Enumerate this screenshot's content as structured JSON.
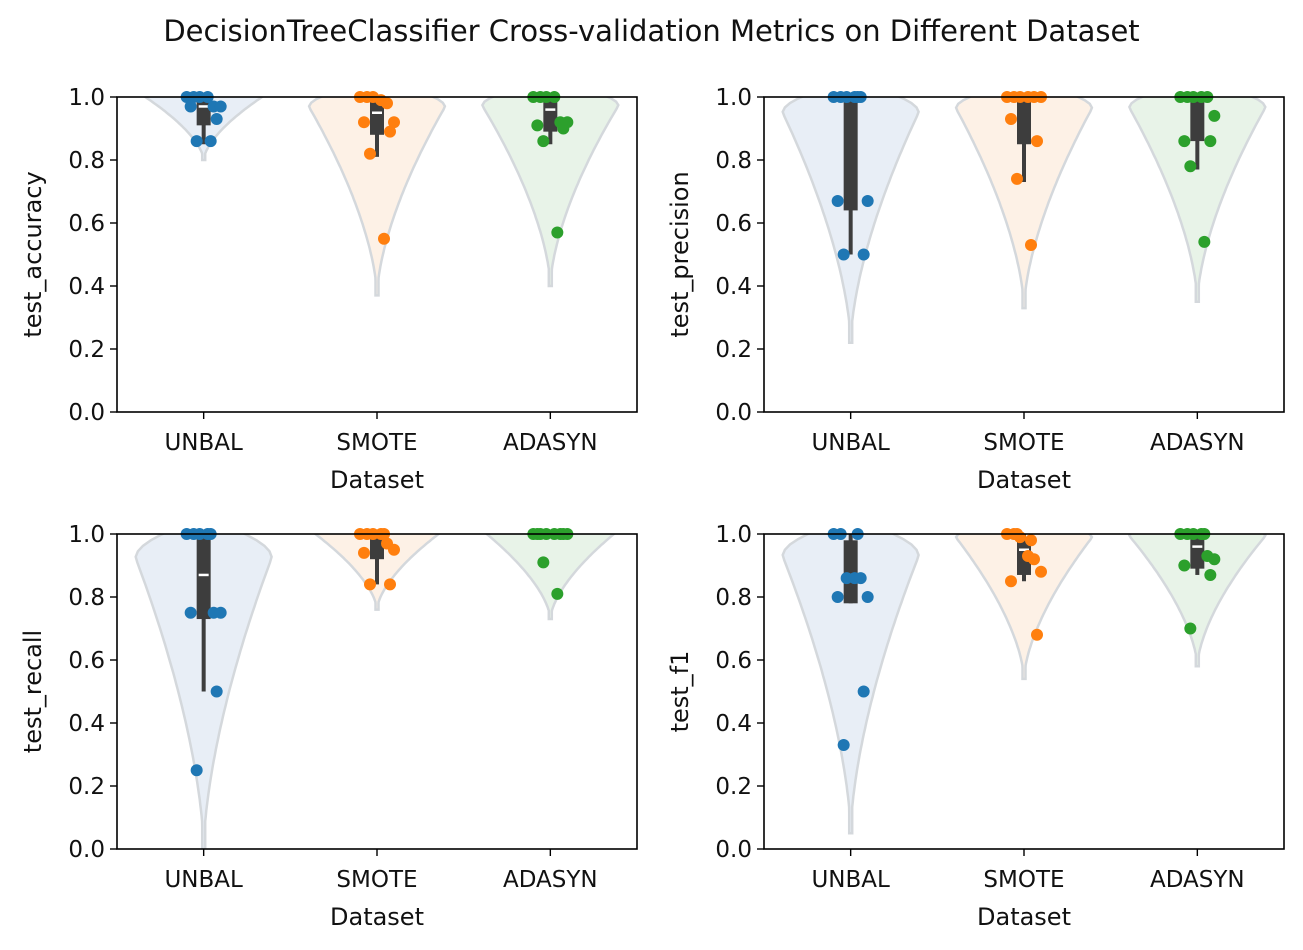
{
  "title": "DecisionTreeClassifier Cross-validation Metrics on Different Dataset",
  "colors": {
    "UNBAL": "#1f77b4",
    "SMOTE": "#ff7f0e",
    "ADASYN": "#2ca02c",
    "violin_UNBAL": "#e8eef6",
    "violin_SMOTE": "#fdf1e6",
    "violin_ADASYN": "#e8f3e8",
    "violin_edge": "#d4d8dc",
    "box": "#3d3d3d",
    "median": "#ffffff"
  },
  "chart_data": [
    {
      "type": "violin",
      "xlabel": "Dataset",
      "ylabel": "test_accuracy",
      "categories": [
        "UNBAL",
        "SMOTE",
        "ADASYN"
      ],
      "ylim": [
        0.0,
        1.0
      ],
      "yticks": [
        "0.0",
        "0.2",
        "0.4",
        "0.6",
        "0.8",
        "1.0"
      ],
      "series": [
        {
          "name": "UNBAL",
          "points": [
            1.0,
            1.0,
            1.0,
            1.0,
            0.97,
            0.97,
            0.97,
            0.93,
            0.86,
            0.86
          ],
          "q1": 0.91,
          "median": 0.97,
          "q3": 1.0,
          "whisker_low": 0.85,
          "whisker_high": 1.0,
          "violin_low": 0.8
        },
        {
          "name": "SMOTE",
          "points": [
            1.0,
            1.0,
            1.0,
            0.99,
            0.98,
            0.92,
            0.92,
            0.89,
            0.82,
            0.55
          ],
          "q1": 0.88,
          "median": 0.95,
          "q3": 1.0,
          "whisker_low": 0.81,
          "whisker_high": 1.0,
          "violin_low": 0.37
        },
        {
          "name": "ADASYN",
          "points": [
            1.0,
            1.0,
            1.0,
            1.0,
            0.92,
            0.92,
            0.91,
            0.9,
            0.86,
            0.57
          ],
          "q1": 0.89,
          "median": 0.96,
          "q3": 1.0,
          "whisker_low": 0.85,
          "whisker_high": 1.0,
          "violin_low": 0.4
        }
      ]
    },
    {
      "type": "violin",
      "xlabel": "Dataset",
      "ylabel": "test_precision",
      "categories": [
        "UNBAL",
        "SMOTE",
        "ADASYN"
      ],
      "ylim": [
        0.0,
        1.0
      ],
      "yticks": [
        "0.0",
        "0.2",
        "0.4",
        "0.6",
        "0.8",
        "1.0"
      ],
      "series": [
        {
          "name": "UNBAL",
          "points": [
            1.0,
            1.0,
            1.0,
            1.0,
            1.0,
            0.67,
            0.67,
            0.5,
            0.5,
            1.0
          ],
          "q1": 0.64,
          "median": 1.0,
          "q3": 1.0,
          "whisker_low": 0.5,
          "whisker_high": 1.0,
          "violin_low": 0.22
        },
        {
          "name": "SMOTE",
          "points": [
            1.0,
            1.0,
            1.0,
            1.0,
            1.0,
            1.0,
            0.93,
            0.86,
            0.74,
            0.53
          ],
          "q1": 0.85,
          "median": 1.0,
          "q3": 1.0,
          "whisker_low": 0.73,
          "whisker_high": 1.0,
          "violin_low": 0.33
        },
        {
          "name": "ADASYN",
          "points": [
            1.0,
            1.0,
            1.0,
            1.0,
            1.0,
            0.94,
            0.86,
            0.86,
            0.78,
            0.54
          ],
          "q1": 0.86,
          "median": 1.0,
          "q3": 1.0,
          "whisker_low": 0.77,
          "whisker_high": 1.0,
          "violin_low": 0.35
        }
      ]
    },
    {
      "type": "violin",
      "xlabel": "Dataset",
      "ylabel": "test_recall",
      "categories": [
        "UNBAL",
        "SMOTE",
        "ADASYN"
      ],
      "ylim": [
        0.0,
        1.0
      ],
      "yticks": [
        "0.0",
        "0.2",
        "0.4",
        "0.6",
        "0.8",
        "1.0"
      ],
      "series": [
        {
          "name": "UNBAL",
          "points": [
            1.0,
            1.0,
            1.0,
            1.0,
            0.75,
            0.75,
            0.75,
            0.5,
            0.25,
            1.0
          ],
          "q1": 0.73,
          "median": 0.87,
          "q3": 1.0,
          "whisker_low": 0.5,
          "whisker_high": 1.0,
          "violin_low": 0.0
        },
        {
          "name": "SMOTE",
          "points": [
            1.0,
            1.0,
            1.0,
            1.0,
            0.97,
            0.95,
            0.94,
            0.84,
            0.84,
            1.0
          ],
          "q1": 0.92,
          "median": 1.0,
          "q3": 1.0,
          "whisker_low": 0.84,
          "whisker_high": 1.0,
          "violin_low": 0.76
        },
        {
          "name": "ADASYN",
          "points": [
            1.0,
            1.0,
            1.0,
            1.0,
            1.0,
            1.0,
            1.0,
            1.0,
            0.91,
            0.81
          ],
          "q1": 1.0,
          "median": 1.0,
          "q3": 1.0,
          "whisker_low": 1.0,
          "whisker_high": 1.0,
          "violin_low": 0.73
        }
      ]
    },
    {
      "type": "violin",
      "xlabel": "Dataset",
      "ylabel": "test_f1",
      "categories": [
        "UNBAL",
        "SMOTE",
        "ADASYN"
      ],
      "ylim": [
        0.0,
        1.0
      ],
      "yticks": [
        "0.0",
        "0.2",
        "0.4",
        "0.6",
        "0.8",
        "1.0"
      ],
      "series": [
        {
          "name": "UNBAL",
          "points": [
            1.0,
            1.0,
            0.86,
            0.86,
            0.86,
            0.8,
            0.8,
            0.5,
            0.33,
            1.0
          ],
          "q1": 0.78,
          "median": 0.86,
          "q3": 0.98,
          "whisker_low": 0.78,
          "whisker_high": 1.0,
          "violin_low": 0.05
        },
        {
          "name": "SMOTE",
          "points": [
            1.0,
            1.0,
            0.99,
            0.93,
            0.92,
            0.88,
            0.85,
            0.68,
            1.0,
            0.98
          ],
          "q1": 0.87,
          "median": 0.95,
          "q3": 0.99,
          "whisker_low": 0.85,
          "whisker_high": 1.0,
          "violin_low": 0.54
        },
        {
          "name": "ADASYN",
          "points": [
            1.0,
            1.0,
            1.0,
            1.0,
            0.93,
            0.92,
            0.9,
            0.87,
            0.7,
            1.0
          ],
          "q1": 0.89,
          "median": 0.96,
          "q3": 1.0,
          "whisker_low": 0.87,
          "whisker_high": 1.0,
          "violin_low": 0.58
        }
      ]
    }
  ]
}
